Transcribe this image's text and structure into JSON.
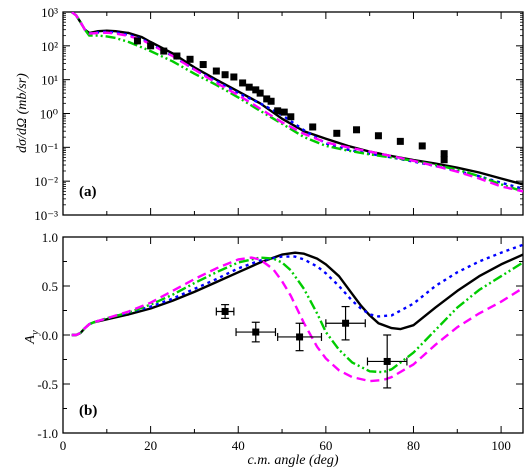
{
  "colors": {
    "solid": "#000000",
    "dotted": "#0000ff",
    "dashdot": "#00cc00",
    "dashed": "#ff00ff",
    "data": "#000000"
  },
  "chart_data": [
    {
      "type": "scatter",
      "panel_label": "(a)",
      "ylabel": "dσ/dΩ (mb/sr)",
      "xlabel": "",
      "xlim": [
        0,
        105
      ],
      "ylim": [
        0.001,
        1000
      ],
      "yscale": "log",
      "xticks": [
        0,
        20,
        40,
        60,
        80,
        100
      ],
      "xtick_labels": [
        "",
        "",
        "",
        "",
        "",
        ""
      ],
      "yticks": [
        0.001,
        0.01,
        0.1,
        1,
        10,
        100,
        1000
      ],
      "ytick_labels": [
        "10⁻³",
        "10⁻²",
        "10⁻¹",
        "10⁰",
        "10¹",
        "10²",
        "10³"
      ],
      "grid": false,
      "series": [
        {
          "style": "solid",
          "color": "#000000",
          "x": [
            2,
            3,
            4,
            5,
            6,
            8,
            10,
            12,
            15,
            18,
            20,
            25,
            30,
            35,
            40,
            45,
            50,
            55,
            60,
            65,
            70,
            75,
            80,
            85,
            90,
            95,
            100,
            105
          ],
          "y": [
            1000,
            800,
            500,
            300,
            240,
            270,
            280,
            270,
            240,
            180,
            130,
            60,
            23,
            10,
            4.5,
            2,
            0.7,
            0.3,
            0.18,
            0.11,
            0.075,
            0.055,
            0.042,
            0.033,
            0.025,
            0.018,
            0.012,
            0.008
          ]
        },
        {
          "style": "dotted",
          "color": "#0000ff",
          "x": [
            2,
            3,
            4,
            5,
            6,
            8,
            10,
            12,
            15,
            18,
            20,
            25,
            30,
            35,
            40,
            45,
            50,
            55,
            60,
            65,
            70,
            75,
            80,
            85,
            90,
            95,
            100,
            105
          ],
          "y": [
            1000,
            800,
            500,
            300,
            230,
            250,
            260,
            250,
            210,
            160,
            115,
            50,
            20,
            9,
            4,
            2,
            0.9,
            0.32,
            0.13,
            0.085,
            0.065,
            0.05,
            0.038,
            0.028,
            0.02,
            0.014,
            0.009,
            0.006
          ]
        },
        {
          "style": "dashdot",
          "color": "#00cc00",
          "x": [
            2,
            3,
            4,
            5,
            6,
            8,
            10,
            12,
            15,
            18,
            20,
            25,
            30,
            35,
            40,
            45,
            50,
            55,
            60,
            65,
            70,
            75,
            80,
            85,
            90,
            95,
            100,
            105
          ],
          "y": [
            1000,
            800,
            500,
            300,
            200,
            200,
            190,
            170,
            130,
            90,
            70,
            35,
            15,
            7,
            3,
            1.2,
            0.5,
            0.2,
            0.11,
            0.08,
            0.062,
            0.05,
            0.04,
            0.03,
            0.022,
            0.014,
            0.008,
            0.005
          ]
        },
        {
          "style": "dashed",
          "color": "#ff00ff",
          "x": [
            2,
            3,
            4,
            5,
            6,
            8,
            10,
            12,
            15,
            18,
            20,
            25,
            30,
            35,
            40,
            45,
            50,
            55,
            60,
            65,
            70,
            75,
            80,
            85,
            90,
            95,
            100,
            105
          ],
          "y": [
            1000,
            800,
            500,
            300,
            230,
            240,
            245,
            230,
            195,
            150,
            110,
            50,
            20,
            8,
            3.5,
            1.4,
            0.55,
            0.25,
            0.14,
            0.1,
            0.075,
            0.055,
            0.04,
            0.028,
            0.019,
            0.012,
            0.007,
            0.005
          ]
        }
      ],
      "points": {
        "marker": "square",
        "x": [
          17,
          20,
          23,
          26,
          29,
          32,
          35,
          37,
          39,
          41,
          42.5,
          44,
          45,
          46.5,
          47.5,
          49,
          50.5,
          52,
          57,
          62.5,
          67,
          72,
          77,
          82,
          87,
          87
        ],
        "y": [
          140,
          100,
          70,
          50,
          40,
          28,
          18,
          14,
          12,
          8,
          6,
          5,
          4,
          2.7,
          2.3,
          1.2,
          1.1,
          0.8,
          0.4,
          0.26,
          0.33,
          0.22,
          0.15,
          0.11,
          0.065,
          0.043
        ]
      }
    },
    {
      "type": "line",
      "panel_label": "(b)",
      "ylabel": "A_y",
      "xlabel": "c.m. angle (deg)",
      "xlim": [
        0,
        105
      ],
      "ylim": [
        -1.0,
        1.0
      ],
      "yscale": "linear",
      "xticks": [
        0,
        20,
        40,
        60,
        80,
        100
      ],
      "xtick_labels": [
        "0",
        "20",
        "40",
        "60",
        "80",
        "100"
      ],
      "yticks": [
        -1.0,
        -0.5,
        0.0,
        0.5,
        1.0
      ],
      "ytick_labels": [
        "-1.0",
        "-0.5",
        "0.0",
        "0.5",
        "1.0"
      ],
      "grid": false,
      "series": [
        {
          "style": "solid",
          "color": "#000000",
          "x": [
            2,
            3,
            4,
            5,
            6,
            7,
            10,
            15,
            20,
            25,
            30,
            35,
            40,
            45,
            50,
            53,
            55,
            58,
            60,
            63,
            66,
            68,
            70,
            72,
            75,
            77,
            80,
            85,
            90,
            95,
            100,
            105
          ],
          "y": [
            0,
            0,
            0.02,
            0.07,
            0.11,
            0.13,
            0.16,
            0.21,
            0.27,
            0.35,
            0.44,
            0.54,
            0.64,
            0.74,
            0.82,
            0.84,
            0.83,
            0.78,
            0.72,
            0.6,
            0.42,
            0.3,
            0.2,
            0.12,
            0.07,
            0.06,
            0.1,
            0.28,
            0.45,
            0.6,
            0.72,
            0.82
          ]
        },
        {
          "style": "dotted",
          "color": "#0000ff",
          "x": [
            2,
            3,
            4,
            5,
            6,
            7,
            10,
            15,
            20,
            25,
            30,
            35,
            40,
            45,
            50,
            53,
            55,
            58,
            60,
            63,
            66,
            68,
            70,
            72,
            75,
            80,
            85,
            90,
            95,
            100,
            105
          ],
          "y": [
            0,
            0,
            0.02,
            0.07,
            0.11,
            0.13,
            0.17,
            0.23,
            0.29,
            0.37,
            0.47,
            0.57,
            0.68,
            0.76,
            0.8,
            0.8,
            0.77,
            0.7,
            0.63,
            0.5,
            0.35,
            0.27,
            0.21,
            0.19,
            0.2,
            0.32,
            0.5,
            0.64,
            0.75,
            0.84,
            0.92
          ]
        },
        {
          "style": "dashdot",
          "color": "#00cc00",
          "x": [
            2,
            3,
            4,
            5,
            6,
            7,
            10,
            15,
            20,
            25,
            30,
            35,
            40,
            45,
            48,
            50,
            52,
            55,
            58,
            60,
            63,
            66,
            70,
            73,
            75,
            80,
            85,
            90,
            95,
            100,
            105
          ],
          "y": [
            0,
            0,
            0.02,
            0.07,
            0.11,
            0.13,
            0.17,
            0.23,
            0.31,
            0.41,
            0.53,
            0.64,
            0.74,
            0.79,
            0.78,
            0.74,
            0.66,
            0.47,
            0.22,
            0.03,
            -0.15,
            -0.28,
            -0.37,
            -0.38,
            -0.35,
            -0.18,
            0.05,
            0.28,
            0.46,
            0.6,
            0.74
          ]
        },
        {
          "style": "dashed",
          "color": "#ff00ff",
          "x": [
            2,
            3,
            4,
            5,
            6,
            7,
            10,
            15,
            20,
            25,
            30,
            35,
            40,
            43,
            45,
            48,
            50,
            52,
            55,
            58,
            60,
            63,
            66,
            70,
            73,
            75,
            80,
            85,
            90,
            95,
            100,
            105
          ],
          "y": [
            0,
            0,
            0.02,
            0.07,
            0.11,
            0.13,
            0.17,
            0.24,
            0.33,
            0.45,
            0.57,
            0.68,
            0.77,
            0.79,
            0.77,
            0.67,
            0.55,
            0.4,
            0.12,
            -0.12,
            -0.24,
            -0.36,
            -0.43,
            -0.47,
            -0.46,
            -0.43,
            -0.3,
            -0.1,
            0.08,
            0.22,
            0.34,
            0.48
          ]
        }
      ],
      "points": {
        "marker": "square",
        "x": [
          37,
          44,
          54,
          64.5,
          74
        ],
        "y": [
          0.24,
          0.03,
          -0.02,
          0.12,
          -0.27
        ],
        "xerr": [
          2,
          4.5,
          5,
          4.5,
          4.5
        ],
        "yerr": [
          0.07,
          0.1,
          0.14,
          0.17,
          0.27
        ]
      }
    }
  ]
}
